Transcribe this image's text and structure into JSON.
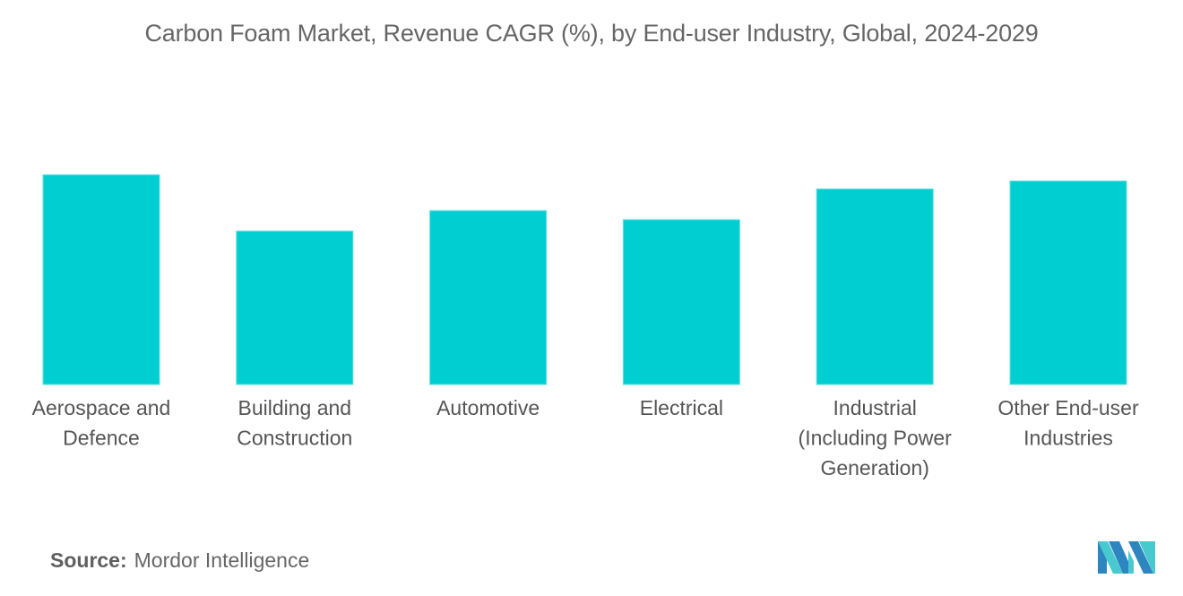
{
  "chart_data": {
    "type": "bar",
    "title": "Carbon Foam Market, Revenue CAGR (%), by End-user Industry, Global, 2024-2029",
    "xlabel": "",
    "ylabel": "",
    "y_axis_visible": false,
    "grid": false,
    "value_units": "relative (tallest bar = 100); no axis or data labels shown",
    "ylim": [
      0,
      100
    ],
    "categories": [
      [
        "Aerospace and",
        "Defence"
      ],
      [
        "Building and",
        "Construction"
      ],
      [
        "Automotive"
      ],
      [
        "Electrical"
      ],
      [
        "Industrial",
        "(Including Power",
        "Generation)"
      ],
      [
        "Other End-user",
        "Industries"
      ]
    ],
    "values": [
      100,
      73.1,
      82.9,
      78.6,
      93.2,
      97.0
    ],
    "bar_color": "#00CED1"
  },
  "source": {
    "label": "Source:",
    "text": "Mordor Intelligence"
  },
  "logo": {
    "icon": "mordor-intelligence-logo-icon",
    "colors": [
      "#2E86C1",
      "#48C9D0"
    ]
  }
}
